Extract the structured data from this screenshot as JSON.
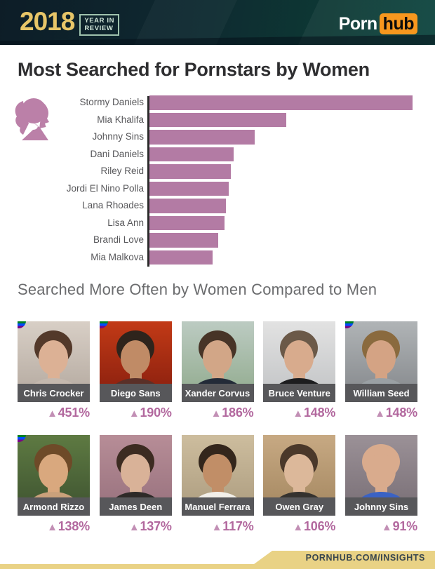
{
  "header": {
    "year": "2018",
    "year_in_review_line1": "YEAR IN",
    "year_in_review_line2": "REVIEW",
    "logo": {
      "porn": "Porn",
      "hub": "hub"
    }
  },
  "main": {
    "title": "Most Searched for Pornstars by Women",
    "section2_title": "Searched More Often by Women Compared to Men"
  },
  "chart_data": {
    "type": "bar",
    "orientation": "horizontal",
    "title": "Most Searched for Pornstars by Women",
    "categories": [
      "Stormy Daniels",
      "Mia Khalifa",
      "Johnny Sins",
      "Dani Daniels",
      "Riley Reid",
      "Jordi El Nino Polla",
      "Lana Rhoades",
      "Lisa Ann",
      "Brandi Love",
      "Mia Malkova"
    ],
    "values_pct_of_max": [
      100,
      52,
      40,
      32,
      31,
      30,
      29,
      28.5,
      26,
      24
    ],
    "xlabel": "",
    "ylabel": "",
    "grid": false,
    "legend": false,
    "bar_color": "#b37ba4",
    "axis_color": "#2b2b2b"
  },
  "people": [
    {
      "name": "Chris Crocker",
      "increase": {
        "arrow": "▲",
        "value": "451%"
      },
      "pride": true,
      "photo_colors": {
        "bg1": "#d8cfc6",
        "bg2": "#b2a79d",
        "hair": "#53392a",
        "skin": "#dcb195",
        "shirt": "#c4b8ae"
      }
    },
    {
      "name": "Diego Sans",
      "increase": {
        "arrow": "▲",
        "value": "190%"
      },
      "pride": true,
      "photo_colors": {
        "bg1": "#c23a16",
        "bg2": "#851d0e",
        "hair": "#2e241c",
        "skin": "#c08b66",
        "shirt": "#5a3028"
      }
    },
    {
      "name": "Xander Corvus",
      "increase": {
        "arrow": "▲",
        "value": "186%"
      },
      "pride": false,
      "photo_colors": {
        "bg1": "#bccbc2",
        "bg2": "#8fa98b",
        "hair": "#473427",
        "skin": "#d2a687",
        "shirt": "#232b38"
      }
    },
    {
      "name": "Bruce Venture",
      "increase": {
        "arrow": "▲",
        "value": "148%"
      },
      "pride": false,
      "photo_colors": {
        "bg1": "#e2e2e2",
        "bg2": "#c0c2c4",
        "hair": "#6b5948",
        "skin": "#d8ab8d",
        "shirt": "#1d1d1f"
      }
    },
    {
      "name": "William Seed",
      "increase": {
        "arrow": "▲",
        "value": "148%"
      },
      "pride": true,
      "photo_colors": {
        "bg1": "#b0b4b6",
        "bg2": "#83868a",
        "hair": "#8a6a3e",
        "skin": "#d4a384",
        "shirt": "#9aa0a4"
      }
    },
    {
      "name": "Armond Rizzo",
      "increase": {
        "arrow": "▲",
        "value": "138%"
      },
      "pride": true,
      "photo_colors": {
        "bg1": "#5e7a42",
        "bg2": "#3d5230",
        "hair": "#6e4a28",
        "skin": "#d9a87e",
        "shirt": "#caa17b"
      }
    },
    {
      "name": "James Deen",
      "increase": {
        "arrow": "▲",
        "value": "137%"
      },
      "pride": false,
      "photo_colors": {
        "bg1": "#b78d97",
        "bg2": "#96707c",
        "hair": "#3c2b21",
        "skin": "#d9b298",
        "shirt": "#2e2a28"
      }
    },
    {
      "name": "Manuel Ferrara",
      "increase": {
        "arrow": "▲",
        "value": "117%"
      },
      "pride": false,
      "photo_colors": {
        "bg1": "#cdbd9e",
        "bg2": "#ab9b7e",
        "hair": "#33261c",
        "skin": "#c18e67",
        "shirt": "#f2efe9"
      }
    },
    {
      "name": "Owen Gray",
      "increase": {
        "arrow": "▲",
        "value": "106%"
      },
      "pride": false,
      "photo_colors": {
        "bg1": "#c7a983",
        "bg2": "#a3865f",
        "hair": "#4a382a",
        "skin": "#dcb89a",
        "shirt": "#35322f"
      }
    },
    {
      "name": "Johnny Sins",
      "increase": {
        "arrow": "▲",
        "value": "91%"
      },
      "pride": false,
      "photo_colors": {
        "bg1": "#9b9197",
        "bg2": "#776d74",
        "hair": "#d9ab8d",
        "skin": "#d9ab8d",
        "shirt": "#3a62c4"
      }
    }
  ],
  "icons": {
    "woman_silhouette": "woman-silhouette-icon",
    "pride_flag": "pride-flag-icon"
  },
  "brand_colors": {
    "header_bg_dark": "#0d1d27",
    "header_bg_teal": "#0c443e",
    "gold": "#e7c568",
    "hub_orange": "#f7971e",
    "bar_pink": "#b37ba4",
    "percent_pink": "#b2689e",
    "name_band_gray": "#57575a",
    "footer_yellow": "#e9d285",
    "pride_flag_colors": [
      "#e40303",
      "#ff8c00",
      "#ffed00",
      "#008026",
      "#004dff",
      "#750787"
    ]
  },
  "footer": {
    "url_label": "PORNHUB.COM/INSIGHTS"
  }
}
